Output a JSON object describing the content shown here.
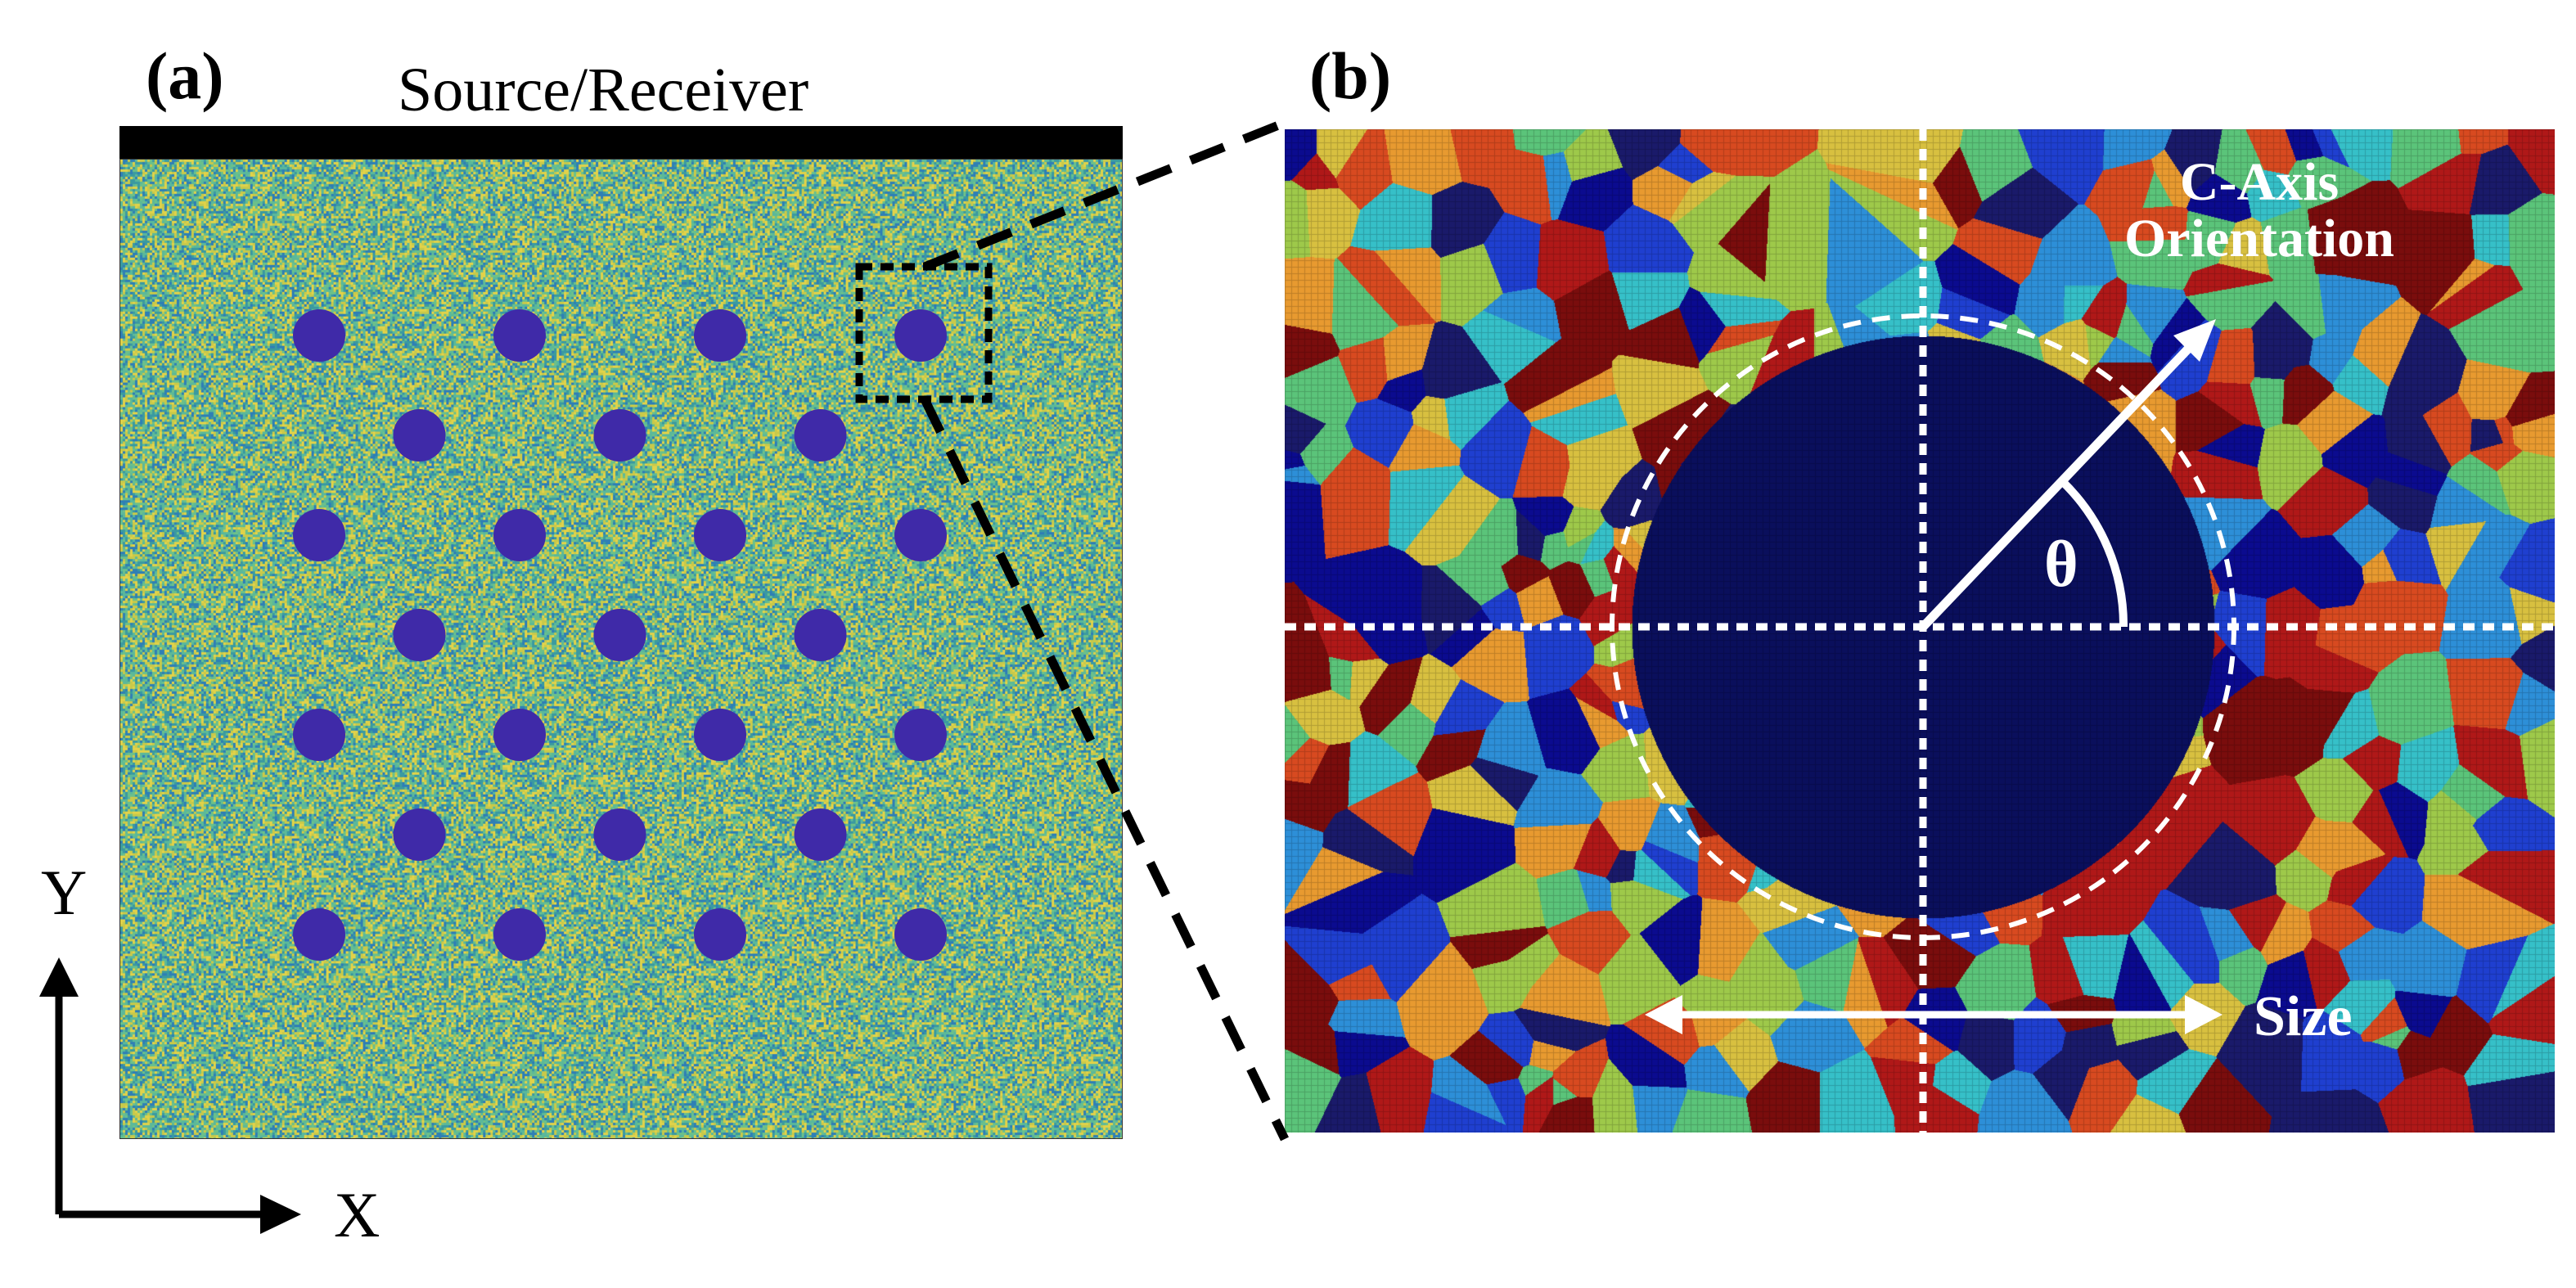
{
  "panel_a": {
    "label": "(a)",
    "source_label": "Source/Receiver",
    "background_colors": [
      "#3b9aa0",
      "#5bb89a",
      "#c8c94a",
      "#2f7fb5",
      "#6cc08a",
      "#e0d24a"
    ],
    "inclusion_color": "#3f2aa8",
    "hole_pattern": {
      "rows": 7,
      "columns_odd_row": 4,
      "columns_even_row": 3,
      "total_holes": 25
    },
    "zoom_target": "top-right hole"
  },
  "panel_b": {
    "label": "(b)",
    "grain_colors": [
      "#0b0b8f",
      "#1f3fd0",
      "#2d8fd8",
      "#36c0c8",
      "#5bc47a",
      "#9ec94a",
      "#d8c040",
      "#e89a30",
      "#d84a20",
      "#b01818",
      "#7a0d0d",
      "#1a1a6a"
    ],
    "inclusion_color": "#0a0f5c",
    "c_axis_label_line1": "C-Axis",
    "c_axis_label_line2": "Orientation",
    "theta_label": "θ",
    "size_label": "Size"
  },
  "axes": {
    "y_label": "Y",
    "x_label": "X"
  }
}
